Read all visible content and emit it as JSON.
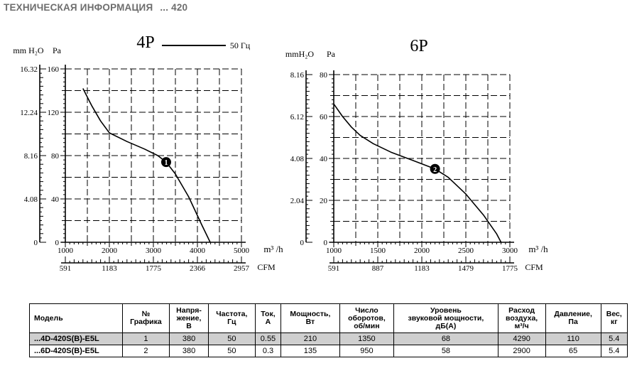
{
  "header": {
    "title": "ТЕХНИЧЕСКАЯ ИНФОРМАЦИЯ",
    "model_suffix": "... 420"
  },
  "legend": {
    "line_label": "50 Гц"
  },
  "chart_data": [
    {
      "type": "line",
      "title": "4P",
      "xlabel": "m³ /h",
      "x2label": "CFM",
      "ylabel_left": "mm H₂O",
      "ylabel_right": "Pa",
      "xlim": [
        1000,
        5000
      ],
      "ylim": [
        0,
        160
      ],
      "xticks": [
        "1000",
        "2000",
        "3000",
        "4000",
        "5000"
      ],
      "yticks": [
        "0",
        "40",
        "80",
        "120",
        "160"
      ],
      "x2ticks": [
        "591",
        "1183",
        "1775",
        "2366",
        "2957"
      ],
      "y2ticks": [
        "0",
        "4.08",
        "8.16",
        "12.24",
        "16.32"
      ],
      "grid": true,
      "series": [
        {
          "values_x": [
            1400,
            1600,
            1800,
            2000,
            2400,
            2800,
            3100,
            3290,
            3500,
            3800,
            4100,
            4290
          ],
          "values_y": [
            142,
            126,
            112,
            101,
            93,
            86,
            80,
            74,
            63,
            42,
            16,
            0
          ]
        }
      ],
      "markers": [
        {
          "label": "1",
          "x": 3290,
          "y": 74
        }
      ]
    },
    {
      "type": "line",
      "title": "6P",
      "xlabel": "m³ /h",
      "x2label": "CFM",
      "ylabel_left": "mmH₂O",
      "ylabel_right": "Pa",
      "xlim": [
        1000,
        3000
      ],
      "ylim": [
        0,
        80
      ],
      "xticks": [
        "1000",
        "1500",
        "2000",
        "2500",
        "3000"
      ],
      "yticks": [
        "0",
        "20",
        "40",
        "60",
        "80"
      ],
      "x2ticks": [
        "591",
        "887",
        "1183",
        "1479",
        "1775"
      ],
      "y2ticks": [
        "0",
        "2.04",
        "4.08",
        "6.12",
        "8.16"
      ],
      "grid": true,
      "series": [
        {
          "values_x": [
            1000,
            1100,
            1200,
            1300,
            1450,
            1650,
            1900,
            2150,
            2300,
            2500,
            2700,
            2850,
            2900
          ],
          "values_y": [
            66,
            60,
            55,
            51,
            47,
            43,
            39,
            35,
            31,
            23,
            13,
            4,
            0
          ]
        }
      ],
      "markers": [
        {
          "label": "2",
          "x": 2150,
          "y": 35
        }
      ]
    }
  ],
  "table": {
    "headers": [
      "Модель",
      "№\nГрафика",
      "Напря-\nжение,\nВ",
      "Частота,\nГц",
      "Ток,\nА",
      "Мощность,\nВт",
      "Число\nоборотов,\nоб/мин",
      "Уровень\nзвуковой мощности,\nдБ(А)",
      "Расход\nвоздуха,\nм³/ч",
      "Давление,\nПа",
      "Вес,\nкг"
    ],
    "rows": [
      [
        "...4D-420S(B)-E5L",
        "1",
        "380",
        "50",
        "0.55",
        "210",
        "1350",
        "68",
        "4290",
        "110",
        "5.4"
      ],
      [
        "...6D-420S(B)-E5L",
        "2",
        "380",
        "50",
        "0.3",
        "135",
        "950",
        "58",
        "2900",
        "65",
        "5.4"
      ]
    ]
  }
}
